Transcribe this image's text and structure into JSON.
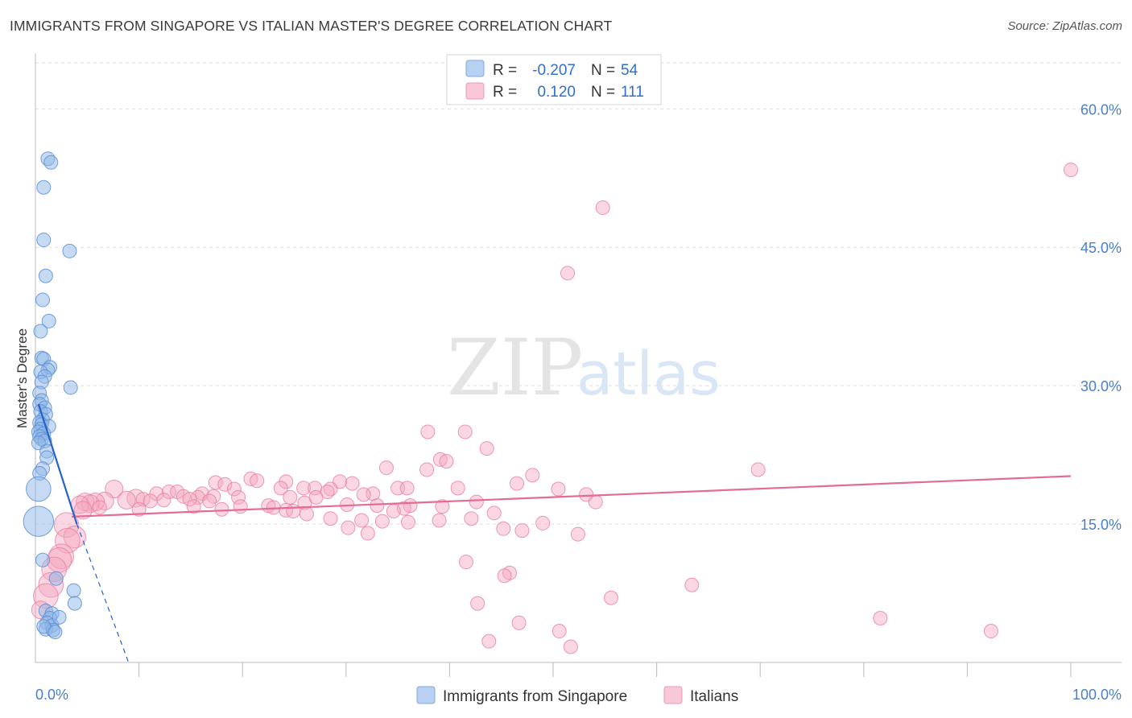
{
  "title": "IMMIGRANTS FROM SINGAPORE VS ITALIAN MASTER'S DEGREE CORRELATION CHART",
  "source": "Source: ZipAtlas.com",
  "watermark": {
    "zip": "ZIP",
    "atlas": "atlas"
  },
  "colors": {
    "blue_fill": "#8fb6e8",
    "blue_stroke": "#5b8fd6",
    "blue_line": "#2563c9",
    "pink_fill": "#f4a7bf",
    "pink_stroke": "#e77fa1",
    "pink_line": "#e36b95",
    "grid": "#dddddd",
    "tick_text": "#4a7fc8"
  },
  "legend": {
    "r_label": "R =",
    "n_label": "N =",
    "rows": [
      {
        "series": "Immigrants from Singapore",
        "r": "-0.207",
        "n": "54",
        "color": "#8fb6e8"
      },
      {
        "series": "Italians",
        "r": "0.120",
        "n": "111",
        "color": "#f4a7bf"
      }
    ]
  },
  "chart_data": {
    "type": "scatter",
    "title": "IMMIGRANTS FROM SINGAPORE VS ITALIAN MASTER'S DEGREE CORRELATION CHART",
    "xlabel": "",
    "ylabel": "Master's Degree",
    "xlim": [
      0,
      100
    ],
    "ylim": [
      0,
      65
    ],
    "x_tick_labels": [
      "0.0%",
      "100.0%"
    ],
    "y_ticks": [
      15,
      30,
      45,
      60
    ],
    "y_tick_labels": [
      "15.0%",
      "30.0%",
      "45.0%",
      "60.0%"
    ],
    "grid": true,
    "series": [
      {
        "name": "Immigrants from Singapore",
        "r": -0.207,
        "n": 54,
        "trend": {
          "x0": 0.3,
          "y0": 28.0,
          "x1": 4.0,
          "y1": 15.0,
          "dash_to_x": 9.0,
          "dash_to_y": 0.0
        },
        "points": [
          {
            "x": 1.2,
            "y": 54.6,
            "s": 1
          },
          {
            "x": 1.5,
            "y": 54.2,
            "s": 1
          },
          {
            "x": 0.8,
            "y": 51.5,
            "s": 1
          },
          {
            "x": 0.8,
            "y": 45.8,
            "s": 1
          },
          {
            "x": 3.3,
            "y": 44.6,
            "s": 1
          },
          {
            "x": 1.0,
            "y": 41.9,
            "s": 1
          },
          {
            "x": 0.7,
            "y": 39.3,
            "s": 1
          },
          {
            "x": 1.3,
            "y": 37.0,
            "s": 1
          },
          {
            "x": 0.5,
            "y": 35.9,
            "s": 1
          },
          {
            "x": 0.6,
            "y": 33.0,
            "s": 1
          },
          {
            "x": 0.8,
            "y": 32.9,
            "s": 1
          },
          {
            "x": 1.4,
            "y": 32.0,
            "s": 1
          },
          {
            "x": 1.2,
            "y": 31.7,
            "s": 1
          },
          {
            "x": 0.5,
            "y": 31.5,
            "s": 1
          },
          {
            "x": 0.9,
            "y": 31.0,
            "s": 1
          },
          {
            "x": 0.6,
            "y": 30.4,
            "s": 1
          },
          {
            "x": 3.4,
            "y": 29.8,
            "s": 1
          },
          {
            "x": 0.4,
            "y": 29.2,
            "s": 1
          },
          {
            "x": 0.6,
            "y": 28.4,
            "s": 1
          },
          {
            "x": 0.4,
            "y": 28.0,
            "s": 1
          },
          {
            "x": 0.9,
            "y": 27.6,
            "s": 1
          },
          {
            "x": 0.5,
            "y": 27.2,
            "s": 1
          },
          {
            "x": 1.0,
            "y": 26.9,
            "s": 1
          },
          {
            "x": 0.7,
            "y": 26.3,
            "s": 1
          },
          {
            "x": 0.4,
            "y": 26.0,
            "s": 1
          },
          {
            "x": 0.6,
            "y": 25.8,
            "s": 1
          },
          {
            "x": 1.3,
            "y": 25.6,
            "s": 1
          },
          {
            "x": 0.5,
            "y": 25.3,
            "s": 1
          },
          {
            "x": 0.3,
            "y": 25.0,
            "s": 1
          },
          {
            "x": 0.8,
            "y": 24.8,
            "s": 1
          },
          {
            "x": 0.4,
            "y": 24.5,
            "s": 1
          },
          {
            "x": 0.6,
            "y": 24.2,
            "s": 1
          },
          {
            "x": 0.9,
            "y": 24.0,
            "s": 1
          },
          {
            "x": 0.3,
            "y": 23.8,
            "s": 1
          },
          {
            "x": 1.1,
            "y": 22.9,
            "s": 1
          },
          {
            "x": 1.1,
            "y": 22.2,
            "s": 1
          },
          {
            "x": 0.7,
            "y": 21.0,
            "s": 1
          },
          {
            "x": 0.4,
            "y": 20.5,
            "s": 1
          },
          {
            "x": 0.3,
            "y": 18.8,
            "s": 1.8
          },
          {
            "x": 0.3,
            "y": 15.3,
            "s": 2.2
          },
          {
            "x": 0.7,
            "y": 11.1,
            "s": 1
          },
          {
            "x": 2.0,
            "y": 9.1,
            "s": 1
          },
          {
            "x": 3.7,
            "y": 7.8,
            "s": 1
          },
          {
            "x": 3.8,
            "y": 6.4,
            "s": 1
          },
          {
            "x": 1.0,
            "y": 5.6,
            "s": 1
          },
          {
            "x": 1.6,
            "y": 5.3,
            "s": 1
          },
          {
            "x": 1.4,
            "y": 4.8,
            "s": 1
          },
          {
            "x": 1.1,
            "y": 4.3,
            "s": 1
          },
          {
            "x": 1.6,
            "y": 4.0,
            "s": 1
          },
          {
            "x": 1.0,
            "y": 3.6,
            "s": 1
          },
          {
            "x": 1.7,
            "y": 3.5,
            "s": 1
          },
          {
            "x": 0.8,
            "y": 3.9,
            "s": 1
          },
          {
            "x": 2.3,
            "y": 4.9,
            "s": 1
          },
          {
            "x": 1.9,
            "y": 3.3,
            "s": 1
          }
        ]
      },
      {
        "name": "Italians",
        "r": 0.12,
        "n": 111,
        "trend": {
          "x0": 3.5,
          "y0": 15.8,
          "x1": 100.0,
          "y1": 20.2
        },
        "points": [
          {
            "x": 100.0,
            "y": 53.4,
            "s": 1
          },
          {
            "x": 54.8,
            "y": 49.3,
            "s": 1
          },
          {
            "x": 51.4,
            "y": 42.2,
            "s": 1
          },
          {
            "x": 37.9,
            "y": 25.0,
            "s": 1
          },
          {
            "x": 41.5,
            "y": 25.0,
            "s": 1
          },
          {
            "x": 43.6,
            "y": 23.2,
            "s": 1
          },
          {
            "x": 39.1,
            "y": 22.0,
            "s": 1
          },
          {
            "x": 39.7,
            "y": 21.8,
            "s": 1
          },
          {
            "x": 33.9,
            "y": 21.1,
            "s": 1
          },
          {
            "x": 37.8,
            "y": 20.9,
            "s": 1
          },
          {
            "x": 69.8,
            "y": 20.9,
            "s": 1
          },
          {
            "x": 48.0,
            "y": 20.3,
            "s": 1
          },
          {
            "x": 20.8,
            "y": 19.9,
            "s": 1
          },
          {
            "x": 21.4,
            "y": 19.7,
            "s": 1
          },
          {
            "x": 24.2,
            "y": 19.6,
            "s": 1
          },
          {
            "x": 17.4,
            "y": 19.5,
            "s": 1
          },
          {
            "x": 29.4,
            "y": 19.6,
            "s": 1
          },
          {
            "x": 30.6,
            "y": 19.4,
            "s": 1
          },
          {
            "x": 18.3,
            "y": 19.3,
            "s": 1
          },
          {
            "x": 46.5,
            "y": 19.4,
            "s": 1
          },
          {
            "x": 40.8,
            "y": 18.9,
            "s": 1
          },
          {
            "x": 25.9,
            "y": 18.9,
            "s": 1
          },
          {
            "x": 27.0,
            "y": 18.9,
            "s": 1
          },
          {
            "x": 35.0,
            "y": 18.9,
            "s": 1
          },
          {
            "x": 35.9,
            "y": 18.9,
            "s": 1
          },
          {
            "x": 23.7,
            "y": 18.9,
            "s": 1
          },
          {
            "x": 28.5,
            "y": 18.8,
            "s": 1
          },
          {
            "x": 19.2,
            "y": 18.8,
            "s": 1
          },
          {
            "x": 50.5,
            "y": 18.8,
            "s": 1
          },
          {
            "x": 7.6,
            "y": 18.8,
            "s": 1.3
          },
          {
            "x": 28.2,
            "y": 18.5,
            "s": 1
          },
          {
            "x": 12.9,
            "y": 18.5,
            "s": 1
          },
          {
            "x": 13.7,
            "y": 18.5,
            "s": 1
          },
          {
            "x": 11.7,
            "y": 18.3,
            "s": 1
          },
          {
            "x": 32.6,
            "y": 18.3,
            "s": 1
          },
          {
            "x": 16.1,
            "y": 18.3,
            "s": 1
          },
          {
            "x": 53.2,
            "y": 18.2,
            "s": 1
          },
          {
            "x": 31.7,
            "y": 18.2,
            "s": 1
          },
          {
            "x": 17.2,
            "y": 18.0,
            "s": 1
          },
          {
            "x": 14.3,
            "y": 18.0,
            "s": 1
          },
          {
            "x": 15.7,
            "y": 17.9,
            "s": 1
          },
          {
            "x": 19.6,
            "y": 17.9,
            "s": 1
          },
          {
            "x": 27.1,
            "y": 17.9,
            "s": 1
          },
          {
            "x": 24.6,
            "y": 17.9,
            "s": 1
          },
          {
            "x": 9.7,
            "y": 17.8,
            "s": 1.3
          },
          {
            "x": 10.4,
            "y": 17.7,
            "s": 1
          },
          {
            "x": 14.9,
            "y": 17.7,
            "s": 1
          },
          {
            "x": 8.8,
            "y": 17.6,
            "s": 1.3
          },
          {
            "x": 12.4,
            "y": 17.6,
            "s": 1
          },
          {
            "x": 6.7,
            "y": 17.5,
            "s": 1.3
          },
          {
            "x": 16.8,
            "y": 17.5,
            "s": 1
          },
          {
            "x": 11.1,
            "y": 17.5,
            "s": 1
          },
          {
            "x": 5.8,
            "y": 17.4,
            "s": 1.3
          },
          {
            "x": 4.8,
            "y": 17.4,
            "s": 1.3
          },
          {
            "x": 42.6,
            "y": 17.4,
            "s": 1
          },
          {
            "x": 54.1,
            "y": 17.4,
            "s": 1
          },
          {
            "x": 26.0,
            "y": 17.3,
            "s": 1
          },
          {
            "x": 5.3,
            "y": 17.2,
            "s": 1.3
          },
          {
            "x": 4.3,
            "y": 17.1,
            "s": 1.3
          },
          {
            "x": 30.1,
            "y": 17.1,
            "s": 1
          },
          {
            "x": 22.5,
            "y": 17.0,
            "s": 1
          },
          {
            "x": 33.0,
            "y": 17.0,
            "s": 1
          },
          {
            "x": 36.2,
            "y": 17.0,
            "s": 1
          },
          {
            "x": 39.3,
            "y": 16.9,
            "s": 1
          },
          {
            "x": 15.3,
            "y": 16.9,
            "s": 1
          },
          {
            "x": 19.8,
            "y": 16.9,
            "s": 1
          },
          {
            "x": 6.2,
            "y": 16.8,
            "s": 1
          },
          {
            "x": 23.0,
            "y": 16.8,
            "s": 1
          },
          {
            "x": 35.6,
            "y": 16.7,
            "s": 1
          },
          {
            "x": 10.0,
            "y": 16.6,
            "s": 1
          },
          {
            "x": 18.0,
            "y": 16.6,
            "s": 1
          },
          {
            "x": 24.2,
            "y": 16.5,
            "s": 1
          },
          {
            "x": 4.6,
            "y": 16.5,
            "s": 1.3
          },
          {
            "x": 24.9,
            "y": 16.4,
            "s": 1
          },
          {
            "x": 34.6,
            "y": 16.4,
            "s": 1
          },
          {
            "x": 44.3,
            "y": 16.2,
            "s": 1
          },
          {
            "x": 26.2,
            "y": 16.1,
            "s": 1
          },
          {
            "x": 42.1,
            "y": 15.6,
            "s": 1
          },
          {
            "x": 28.5,
            "y": 15.6,
            "s": 1
          },
          {
            "x": 31.5,
            "y": 15.4,
            "s": 1
          },
          {
            "x": 39.0,
            "y": 15.4,
            "s": 1
          },
          {
            "x": 33.5,
            "y": 15.3,
            "s": 1
          },
          {
            "x": 36.0,
            "y": 15.2,
            "s": 1
          },
          {
            "x": 49.0,
            "y": 15.1,
            "s": 1
          },
          {
            "x": 3.0,
            "y": 14.9,
            "s": 1.8
          },
          {
            "x": 30.2,
            "y": 14.6,
            "s": 1
          },
          {
            "x": 45.2,
            "y": 14.5,
            "s": 1
          },
          {
            "x": 47.0,
            "y": 14.3,
            "s": 1
          },
          {
            "x": 32.1,
            "y": 14.0,
            "s": 1
          },
          {
            "x": 52.4,
            "y": 13.9,
            "s": 1
          },
          {
            "x": 3.8,
            "y": 13.6,
            "s": 1.6
          },
          {
            "x": 3.1,
            "y": 13.2,
            "s": 1.8
          },
          {
            "x": 2.5,
            "y": 11.5,
            "s": 1.8
          },
          {
            "x": 2.3,
            "y": 11.1,
            "s": 1.8
          },
          {
            "x": 41.6,
            "y": 10.9,
            "s": 1
          },
          {
            "x": 1.8,
            "y": 10.1,
            "s": 1.8
          },
          {
            "x": 45.8,
            "y": 9.7,
            "s": 1
          },
          {
            "x": 45.3,
            "y": 9.4,
            "s": 1
          },
          {
            "x": 1.5,
            "y": 8.4,
            "s": 1.8
          },
          {
            "x": 63.4,
            "y": 8.4,
            "s": 1
          },
          {
            "x": 1.0,
            "y": 7.2,
            "s": 1.8
          },
          {
            "x": 55.6,
            "y": 7.0,
            "s": 1
          },
          {
            "x": 42.7,
            "y": 6.4,
            "s": 1
          },
          {
            "x": 0.5,
            "y": 5.7,
            "s": 1.3
          },
          {
            "x": 81.6,
            "y": 4.8,
            "s": 1
          },
          {
            "x": 46.7,
            "y": 4.3,
            "s": 1
          },
          {
            "x": 92.3,
            "y": 3.4,
            "s": 1
          },
          {
            "x": 50.6,
            "y": 3.4,
            "s": 1
          },
          {
            "x": 43.8,
            "y": 2.3,
            "s": 1
          },
          {
            "x": 51.7,
            "y": 1.7,
            "s": 1
          }
        ]
      }
    ]
  }
}
